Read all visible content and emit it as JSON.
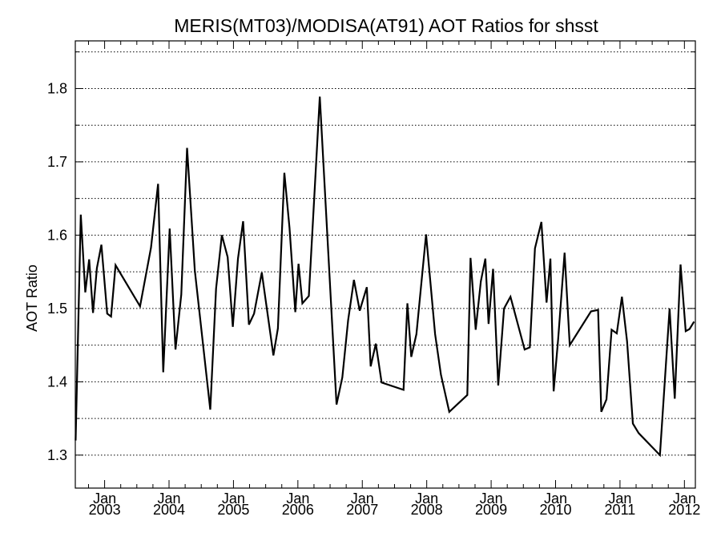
{
  "chart_data": {
    "type": "line",
    "title": "MERIS(MT03)/MODISA(AT91)  AOT Ratios for shsst",
    "xlabel": "",
    "ylabel": "AOT Ratio",
    "ylim": [
      1.255,
      1.865
    ],
    "y_ticks": [
      "1.3",
      "1.4",
      "1.5",
      "1.6",
      "1.7",
      "1.8"
    ],
    "y_tick_values": [
      1.3,
      1.4,
      1.5,
      1.6,
      1.7,
      1.8
    ],
    "grid": "horizontal dotted",
    "x_axis": {
      "start": "2002-07",
      "end": "2012-03",
      "ticks": [
        {
          "month": "Jan",
          "year": "2003",
          "x": 2003.0
        },
        {
          "month": "Jan",
          "year": "2004",
          "x": 2004.0
        },
        {
          "month": "Jan",
          "year": "2005",
          "x": 2005.0
        },
        {
          "month": "Jan",
          "year": "2006",
          "x": 2006.0
        },
        {
          "month": "Jan",
          "year": "2007",
          "x": 2007.0
        },
        {
          "month": "Jan",
          "year": "2008",
          "x": 2008.0
        },
        {
          "month": "Jan",
          "year": "2009",
          "x": 2009.0
        },
        {
          "month": "Jan",
          "year": "2010",
          "x": 2010.0
        },
        {
          "month": "Jan",
          "year": "2011",
          "x": 2011.0
        },
        {
          "month": "Jan",
          "year": "2012",
          "x": 2012.0
        }
      ]
    },
    "series": [
      {
        "color": "#000000",
        "x": [
          2002.55,
          2002.63,
          2002.7,
          2002.76,
          2002.82,
          2002.88,
          2002.95,
          2003.04,
          2003.1,
          2003.17,
          2003.55,
          2003.72,
          2003.83,
          2003.91,
          2004.01,
          2004.1,
          2004.19,
          2004.28,
          2004.4,
          2004.64,
          2004.73,
          2004.82,
          2004.91,
          2004.99,
          2005.07,
          2005.15,
          2005.24,
          2005.32,
          2005.44,
          2005.62,
          2005.69,
          2005.79,
          2005.87,
          2005.96,
          2006.01,
          2006.07,
          2006.17,
          2006.34,
          2006.6,
          2006.69,
          2006.78,
          2006.87,
          2006.96,
          2007.07,
          2007.13,
          2007.21,
          2007.3,
          2007.64,
          2007.7,
          2007.76,
          2007.84,
          2007.99,
          2008.13,
          2008.22,
          2008.35,
          2008.63,
          2008.68,
          2008.76,
          2008.84,
          2008.91,
          2008.96,
          2009.03,
          2009.11,
          2009.2,
          2009.3,
          2009.52,
          2009.6,
          2009.68,
          2009.78,
          2009.86,
          2009.92,
          2009.97,
          2010.04,
          2010.14,
          2010.22,
          2010.55,
          2010.66,
          2010.71,
          2010.79,
          2010.87,
          2010.95,
          2011.03,
          2011.11,
          2011.2,
          2011.29,
          2011.62,
          2011.77,
          2011.85,
          2011.94,
          2012.02,
          2012.08,
          2012.15
        ],
        "values": [
          1.32,
          1.628,
          1.522,
          1.567,
          1.494,
          1.555,
          1.587,
          1.493,
          1.489,
          1.559,
          1.503,
          1.583,
          1.67,
          1.413,
          1.609,
          1.444,
          1.519,
          1.719,
          1.552,
          1.362,
          1.527,
          1.6,
          1.57,
          1.475,
          1.568,
          1.619,
          1.478,
          1.493,
          1.549,
          1.436,
          1.473,
          1.685,
          1.61,
          1.495,
          1.561,
          1.507,
          1.517,
          1.789,
          1.369,
          1.406,
          1.484,
          1.539,
          1.497,
          1.529,
          1.421,
          1.452,
          1.399,
          1.389,
          1.507,
          1.434,
          1.465,
          1.601,
          1.465,
          1.41,
          1.359,
          1.382,
          1.569,
          1.471,
          1.537,
          1.568,
          1.479,
          1.554,
          1.395,
          1.5,
          1.516,
          1.444,
          1.447,
          1.582,
          1.618,
          1.508,
          1.568,
          1.387,
          1.458,
          1.576,
          1.45,
          1.496,
          1.498,
          1.359,
          1.376,
          1.471,
          1.466,
          1.516,
          1.455,
          1.343,
          1.33,
          1.3,
          1.5,
          1.377,
          1.56,
          1.469,
          1.472,
          1.482
        ]
      }
    ]
  }
}
